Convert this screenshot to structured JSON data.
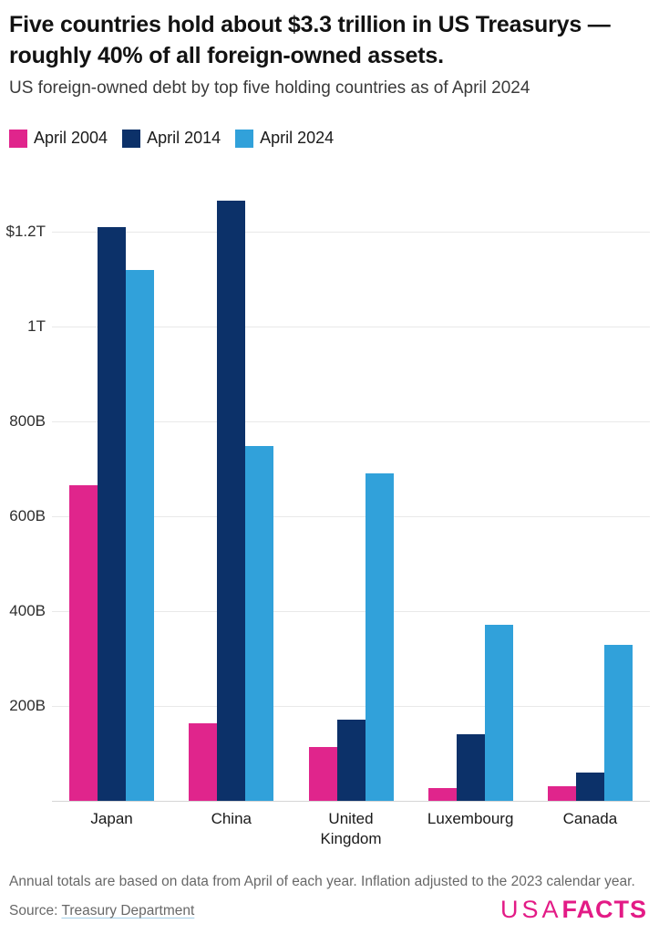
{
  "header": {
    "title_line1": "Five countries hold about $3.3 trillion in US Treasurys —",
    "title_line2": "roughly 40% of all foreign-owned assets.",
    "subtitle": "US foreign-owned debt by top five holding countries as of April 2024"
  },
  "legend": [
    {
      "label": "April 2004",
      "color": "#e0258c"
    },
    {
      "label": "April 2014",
      "color": "#0c3169"
    },
    {
      "label": "April 2024",
      "color": "#31a1da"
    }
  ],
  "chart_data": {
    "type": "bar",
    "title": "US foreign-owned debt by top five holding countries as of April 2024",
    "unit": "billions of US dollars",
    "categories": [
      "Japan",
      "China",
      "United Kingdom",
      "Luxembourg",
      "Canada"
    ],
    "series": [
      {
        "name": "April 2004",
        "color": "#e0258c",
        "values": [
          665,
          164,
          113,
          26,
          31
        ]
      },
      {
        "name": "April 2014",
        "color": "#0c3169",
        "values": [
          1210,
          1264,
          171,
          140,
          60
        ]
      },
      {
        "name": "April 2024",
        "color": "#31a1da",
        "values": [
          1118,
          747,
          690,
          371,
          329
        ]
      }
    ],
    "y_ticks": [
      {
        "value": 200,
        "label": "200B"
      },
      {
        "value": 400,
        "label": "400B"
      },
      {
        "value": 600,
        "label": "600B"
      },
      {
        "value": 800,
        "label": "800B"
      },
      {
        "value": 1000,
        "label": "1T"
      },
      {
        "value": 1200,
        "label": "$1.2T"
      }
    ],
    "ylim": [
      0,
      1313
    ],
    "grid": true,
    "legend_position": "top"
  },
  "footer": {
    "note": "Annual totals are based on data from April of each year. Inflation adjusted to the 2023 calendar year.",
    "source_prefix": "Source: ",
    "source_link": "Treasury Department",
    "logo_part1": "USA",
    "logo_part2": "FACTS",
    "logo_color": "#e31b86"
  }
}
